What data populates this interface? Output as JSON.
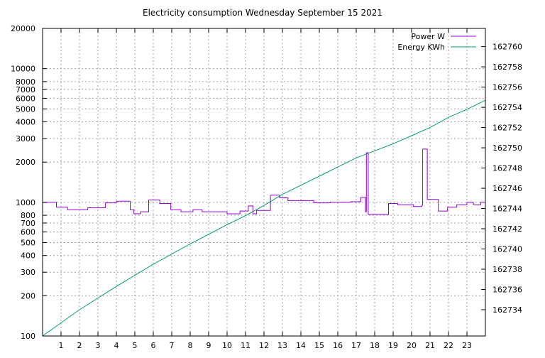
{
  "chart_data": {
    "type": "line",
    "title": "Electricity consumption Wednesday September 15 2021",
    "xlabel": "",
    "ylabel": "",
    "y2label": "",
    "xlim": [
      0,
      24
    ],
    "ylim": [
      100,
      20000
    ],
    "yscale": "log",
    "y2lim": [
      162731.4,
      162761.8
    ],
    "grid": true,
    "legend_position": "top-right",
    "x_ticks": [
      1,
      2,
      3,
      4,
      5,
      6,
      7,
      8,
      9,
      10,
      11,
      12,
      13,
      14,
      15,
      16,
      17,
      18,
      19,
      20,
      21,
      22,
      23
    ],
    "y_ticks": [
      {
        "value": 100,
        "label": "100"
      },
      {
        "value": 200,
        "label": "200"
      },
      {
        "value": 300,
        "label": "300"
      },
      {
        "value": 400,
        "label": "400"
      },
      {
        "value": 500,
        "label": "500"
      },
      {
        "value": 600,
        "label": "600"
      },
      {
        "value": 700,
        "label": "700"
      },
      {
        "value": 800,
        "label": "800"
      },
      {
        "value": 1000,
        "label": "1000"
      },
      {
        "value": 2000,
        "label": "2000"
      },
      {
        "value": 3000,
        "label": "3000"
      },
      {
        "value": 4000,
        "label": "4000"
      },
      {
        "value": 5000,
        "label": "5000"
      },
      {
        "value": 6000,
        "label": "6000"
      },
      {
        "value": 7000,
        "label": "7000"
      },
      {
        "value": 8000,
        "label": "8000"
      },
      {
        "value": 10000,
        "label": "10000"
      },
      {
        "value": 20000,
        "label": "20000"
      }
    ],
    "y2_ticks": [
      162734,
      162736,
      162738,
      162740,
      162742,
      162744,
      162746,
      162748,
      162750,
      162752,
      162754,
      162756,
      162758,
      162760
    ],
    "series": [
      {
        "name": "Power W",
        "axis": "left",
        "color": "#9400d3",
        "step": true,
        "x": [
          0,
          0.75,
          1.35,
          2.45,
          3.4,
          4.0,
          4.75,
          4.95,
          5.3,
          5.75,
          6.35,
          6.95,
          7.5,
          8.15,
          8.65,
          10.0,
          10.7,
          11.15,
          11.4,
          11.6,
          12.35,
          12.85,
          13.3,
          14.7,
          15.6,
          16.7,
          17.25,
          17.5,
          17.55,
          17.65,
          18.75,
          19.25,
          19.75,
          20.1,
          20.3,
          20.55,
          20.6,
          20.85,
          21.45,
          21.95,
          22.45,
          23.0,
          23.35,
          23.75,
          24.0
        ],
        "y": [
          1000,
          920,
          880,
          910,
          990,
          1020,
          880,
          820,
          850,
          1040,
          980,
          880,
          850,
          880,
          850,
          820,
          860,
          940,
          820,
          870,
          1130,
          1080,
          1030,
          990,
          1000,
          1010,
          1090,
          850,
          2350,
          810,
          980,
          960,
          960,
          930,
          930,
          950,
          2500,
          1050,
          860,
          920,
          960,
          1000,
          960,
          1000,
          1200
        ]
      },
      {
        "name": "Energy KWh",
        "axis": "right",
        "color": "#009e73",
        "x": [
          0,
          2,
          4,
          6,
          8,
          10,
          11,
          12,
          13,
          14,
          15,
          16,
          17,
          18,
          19,
          20,
          21,
          22,
          23,
          24
        ],
        "y": [
          162731.4,
          162734.0,
          162736.3,
          162738.5,
          162740.5,
          162742.4,
          162743.3,
          162744.3,
          162745.4,
          162746.3,
          162747.2,
          162748.1,
          162749.0,
          162749.7,
          162750.4,
          162751.2,
          162752.0,
          162753.0,
          162753.8,
          162754.7
        ]
      }
    ]
  }
}
